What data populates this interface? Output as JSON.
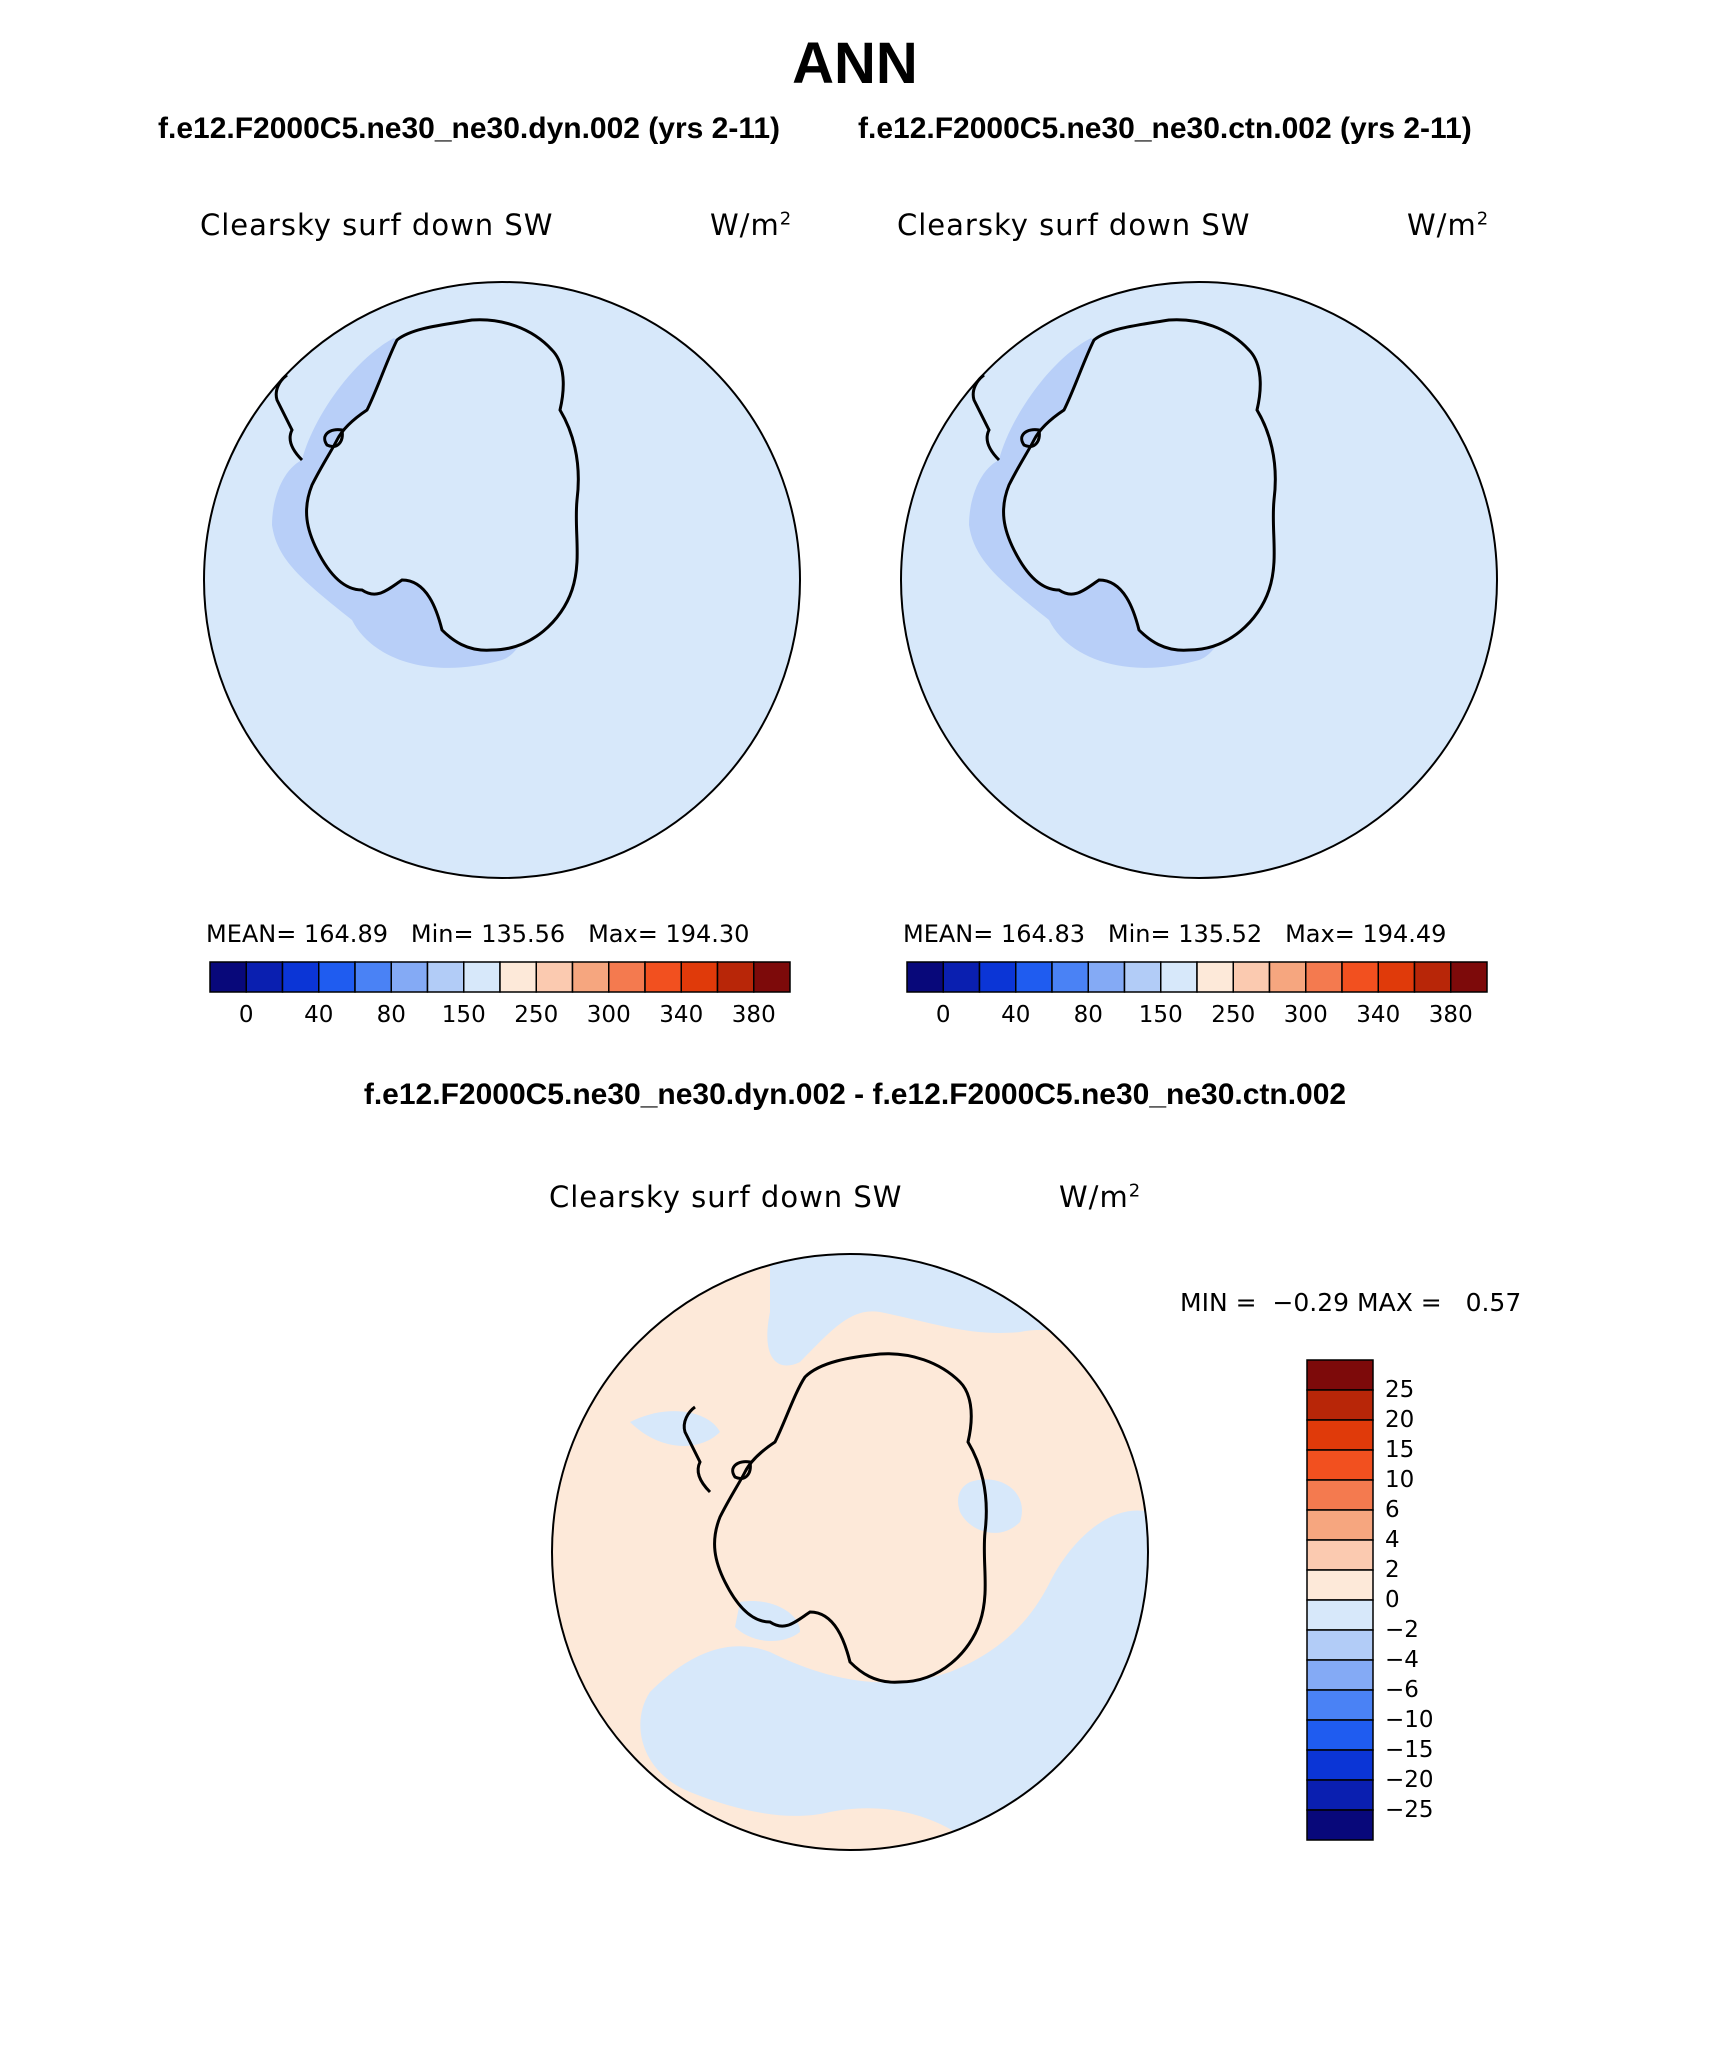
{
  "title": "ANN",
  "cases": {
    "left": "f.e12.F2000C5.ne30_ne30.dyn.002 (yrs 2-11)",
    "right": "f.e12.F2000C5.ne30_ne30.ctn.002 (yrs 2-11)",
    "diff": "f.e12.F2000C5.ne30_ne30.dyn.002 - f.e12.F2000C5.ne30_ne30.ctn.002"
  },
  "variable": "Clearsky surf down SW",
  "units": {
    "base": "W/m",
    "exp": "2"
  },
  "panels": [
    {
      "id": "dyn",
      "mean_label": "MEAN=",
      "mean": "164.89",
      "min_label": "Min=",
      "min": "135.56",
      "max_label": "Max=",
      "max": "194.30"
    },
    {
      "id": "ctn",
      "mean_label": "MEAN=",
      "mean": "164.83",
      "min_label": "Min=",
      "min": "135.52",
      "max_label": "Max=",
      "max": "194.49"
    }
  ],
  "diff_stats": {
    "min_label": "MIN =",
    "min": "−0.29",
    "max_label": "MAX =",
    "max": "0.57"
  },
  "colorbar_abs": {
    "ticks": [
      "0",
      "40",
      "80",
      "150",
      "250",
      "300",
      "340",
      "380"
    ],
    "colors": [
      "#08087a",
      "#0a1fb0",
      "#0b35d6",
      "#1f5cf0",
      "#4a82f5",
      "#84aaf5",
      "#b2ccf7",
      "#d7e8fa",
      "#fde9d9",
      "#fbcab0",
      "#f6a67f",
      "#f47a4f",
      "#f2501f",
      "#e03a0a",
      "#b82608",
      "#7d0a0a"
    ]
  },
  "colorbar_diff": {
    "ticks": [
      "25",
      "20",
      "15",
      "10",
      "6",
      "4",
      "2",
      "0",
      "−2",
      "−4",
      "−6",
      "−10",
      "−15",
      "−20",
      "−25"
    ],
    "colors": [
      "#7d0a0a",
      "#b82608",
      "#e03a0a",
      "#f2501f",
      "#f47a4f",
      "#f6a67f",
      "#fbcab0",
      "#fde9d9",
      "#d7e8fa",
      "#b2ccf7",
      "#84aaf5",
      "#4a82f5",
      "#1f5cf0",
      "#0b35d6",
      "#0a1fb0",
      "#08087a"
    ]
  },
  "map_colors": {
    "ocean": "#d7e8fa",
    "interior_light": "#eef3fc",
    "low_band": "#b8cff8",
    "diff_pos": "#fde9d9",
    "diff_neg": "#d7e8fa"
  }
}
